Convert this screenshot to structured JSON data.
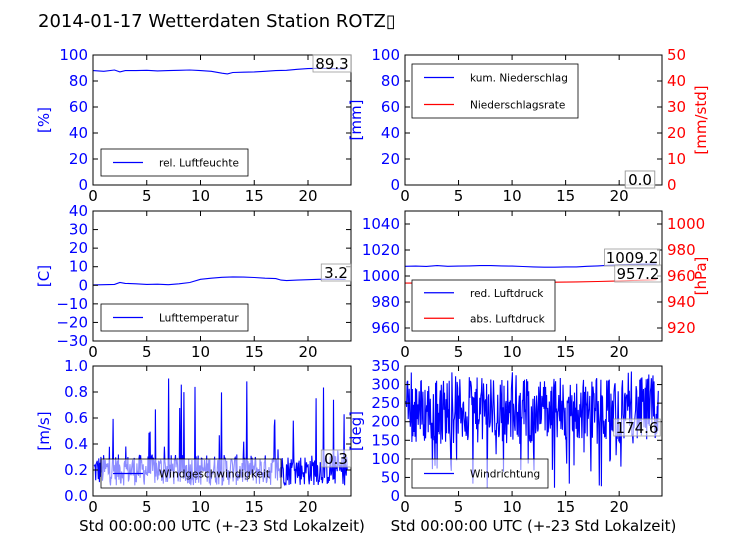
{
  "figure": {
    "title": "2014-01-17 Wetterdaten Station ROTZ▯"
  },
  "colors": {
    "blue": "#0000ff",
    "red": "#ff0000",
    "black": "#000000"
  },
  "chart_data": [
    {
      "id": "humidity",
      "type": "line",
      "ylabel": "[%]",
      "xlabel": "",
      "xlim": [
        0,
        24
      ],
      "ylim": [
        0,
        100
      ],
      "xticks": [
        "0",
        "5",
        "10",
        "15",
        "20"
      ],
      "yticks": [
        "0",
        "20",
        "40",
        "60",
        "80",
        "100"
      ],
      "last_value_label": "89.3",
      "legend": {
        "position": "lower-left"
      },
      "series": [
        {
          "name": "rel. Luftfeuchte",
          "color": "#0000ff",
          "x": [
            0,
            1,
            2,
            2.5,
            3,
            4,
            5,
            6,
            7,
            8,
            9,
            10,
            11,
            12,
            12.5,
            13,
            14,
            15,
            16,
            17,
            18,
            19,
            20,
            21,
            22,
            23.5
          ],
          "y": [
            88,
            87.5,
            88.5,
            87,
            88,
            88,
            88.2,
            87.8,
            88,
            88.2,
            88.5,
            88,
            87.5,
            86,
            85.5,
            86.5,
            86.8,
            87,
            87.5,
            88,
            88.2,
            89,
            89.5,
            89.8,
            89.5,
            89.3
          ]
        }
      ]
    },
    {
      "id": "precipitation",
      "type": "line",
      "ylabel": "[mm]",
      "ylabel_right": "[mm/std]",
      "xlabel": "",
      "xlim": [
        0,
        24
      ],
      "ylim": [
        0,
        100
      ],
      "ylim_right": [
        0,
        50
      ],
      "xticks": [
        "0",
        "5",
        "10",
        "15",
        "20"
      ],
      "yticks": [
        "0",
        "20",
        "40",
        "60",
        "80",
        "100"
      ],
      "yticks_right": [
        "0",
        "10",
        "20",
        "30",
        "40",
        "50"
      ],
      "last_value_labels": [
        "0.0",
        "0.0"
      ],
      "legend": {
        "position": "upper-left"
      },
      "series": [
        {
          "name": "kum. Niederschlag",
          "axis": "left",
          "color": "#0000ff",
          "x": [
            0,
            24
          ],
          "y": [
            0,
            0
          ]
        },
        {
          "name": "Niederschlagsrate",
          "axis": "right",
          "color": "#ff0000",
          "x": [
            0,
            24
          ],
          "y": [
            0,
            0
          ]
        }
      ]
    },
    {
      "id": "temperature",
      "type": "line",
      "ylabel": "[C]",
      "xlabel": "",
      "xlim": [
        0,
        24
      ],
      "ylim": [
        -30,
        40
      ],
      "xticks": [
        "0",
        "5",
        "10",
        "15",
        "20"
      ],
      "yticks": [
        "−30",
        "−20",
        "−10",
        "0",
        "10",
        "20",
        "30",
        "40"
      ],
      "last_value_label": "3.2",
      "legend": {
        "position": "lower-left"
      },
      "series": [
        {
          "name": "Lufttemperatur",
          "color": "#0000ff",
          "x": [
            0,
            1,
            2,
            2.5,
            3,
            4,
            5,
            6,
            7,
            8,
            9,
            10,
            11,
            12,
            13,
            14,
            15,
            16,
            17,
            17.5,
            18,
            19,
            20,
            21,
            22,
            23.5
          ],
          "y": [
            0.2,
            0.3,
            0.5,
            1.5,
            1,
            0.8,
            0.5,
            0.6,
            0.3,
            0.8,
            1.5,
            3.2,
            3.8,
            4.3,
            4.5,
            4.4,
            4.2,
            3.8,
            3.6,
            2.8,
            2.5,
            2.8,
            3.0,
            3.2,
            3.3,
            3.2
          ]
        }
      ]
    },
    {
      "id": "pressure",
      "type": "line",
      "ylabel": "",
      "ylabel_right": "[hPa]",
      "xlabel": "",
      "xlim": [
        0,
        24
      ],
      "ylim": [
        950,
        1050
      ],
      "ylim_right": [
        910,
        1010
      ],
      "xticks": [
        "0",
        "5",
        "10",
        "15",
        "20"
      ],
      "yticks": [
        "960",
        "980",
        "1000",
        "1020",
        "1040"
      ],
      "yticks_right": [
        "920",
        "940",
        "960",
        "980",
        "1000"
      ],
      "last_value_labels": [
        "1009.2",
        "957.2"
      ],
      "legend": {
        "position": "lower-left"
      },
      "series": [
        {
          "name": "red. Luftdruck",
          "axis": "left",
          "color": "#0000ff",
          "x": [
            0,
            1,
            2,
            3,
            4,
            5,
            6,
            7,
            8,
            9,
            10,
            11,
            12,
            13,
            14,
            15,
            16,
            17,
            18,
            19,
            20,
            21,
            22,
            23,
            23.5
          ],
          "y": [
            1007.5,
            1007.6,
            1007.4,
            1008,
            1007.5,
            1007.6,
            1007.8,
            1008,
            1008,
            1007.8,
            1007.6,
            1007.3,
            1007,
            1006.8,
            1006.8,
            1007,
            1007,
            1007.5,
            1007.8,
            1008.2,
            1008.6,
            1008.9,
            1009.1,
            1009.2,
            1009.2
          ]
        },
        {
          "name": "abs. Luftdruck",
          "axis": "right",
          "color": "#ff0000",
          "x": [
            0,
            2,
            4,
            6,
            8,
            10,
            12,
            14,
            16,
            18,
            20,
            21,
            22,
            23,
            23.5
          ],
          "y": [
            954.5,
            954.5,
            954.8,
            955,
            955,
            955,
            955.2,
            955.2,
            955.5,
            955.8,
            956.2,
            956.5,
            956.8,
            957,
            957.2
          ]
        }
      ]
    },
    {
      "id": "windspeed",
      "type": "line",
      "ylabel": "[m/s]",
      "xlabel": "Std 00:00:00 UTC (+-23 Std Lokalzeit)",
      "xlim": [
        0,
        24
      ],
      "ylim": [
        0,
        1.0
      ],
      "xticks": [
        "0",
        "5",
        "10",
        "15",
        "20"
      ],
      "yticks": [
        "0.0",
        "0.2",
        "0.4",
        "0.6",
        "0.8",
        "1.0"
      ],
      "last_value_label": "0.3",
      "legend": {
        "position": "lower-left"
      },
      "series": [
        {
          "name": "Windgeschwindigkeit",
          "color": "#0000ff",
          "noisy": true,
          "samples": 480,
          "base": 0.2,
          "spread": 0.12,
          "spike_max": 0.91
        }
      ]
    },
    {
      "id": "winddirection",
      "type": "line",
      "ylabel": "[deg]",
      "xlabel": "Std 00:00:00 UTC (+-23 Std Lokalzeit)",
      "xlim": [
        0,
        24
      ],
      "ylim": [
        0,
        350
      ],
      "xticks": [
        "0",
        "5",
        "10",
        "15",
        "20"
      ],
      "yticks": [
        "0",
        "50",
        "100",
        "150",
        "200",
        "250",
        "300",
        "350"
      ],
      "last_value_label": "174.6",
      "legend": {
        "position": "lower-left"
      },
      "series": [
        {
          "name": "Windrichtung",
          "color": "#0000ff",
          "noisy": true,
          "samples": 480,
          "base": 230,
          "spread": 90,
          "spike_max": 340
        }
      ]
    }
  ]
}
